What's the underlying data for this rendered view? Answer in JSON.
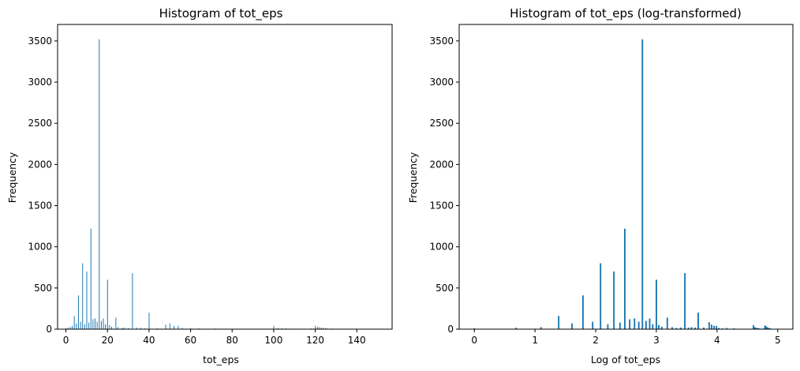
{
  "figure": {
    "background": "#ffffff",
    "bar_color": "#1f77b4"
  },
  "chart_data": [
    {
      "type": "bar",
      "title": "Histogram of tot_eps",
      "xlabel": "tot_eps",
      "ylabel": "Frequency",
      "xlim": [
        -4,
        157
      ],
      "ylim": [
        0,
        3700
      ],
      "xticks": [
        0,
        20,
        40,
        60,
        80,
        100,
        120,
        140
      ],
      "yticks": [
        0,
        500,
        1000,
        1500,
        2000,
        2500,
        3000,
        3500
      ],
      "grid": false,
      "bin_width": 0.3,
      "x": [
        0,
        1,
        2,
        3,
        4,
        5,
        6,
        7,
        8,
        9,
        10,
        11,
        12,
        13,
        14,
        15,
        16,
        17,
        18,
        19,
        20,
        21,
        22,
        24,
        25,
        27,
        28,
        30,
        32,
        34,
        36,
        38,
        40,
        44,
        48,
        50,
        52,
        54,
        56,
        60,
        64,
        72,
        100,
        102,
        104,
        106,
        108,
        110,
        118,
        120,
        121,
        122,
        123,
        124,
        125,
        126,
        128,
        130
      ],
      "values": [
        10,
        18,
        25,
        40,
        160,
        70,
        410,
        90,
        800,
        60,
        700,
        80,
        1220,
        120,
        130,
        90,
        3520,
        100,
        130,
        60,
        600,
        50,
        30,
        140,
        25,
        15,
        20,
        15,
        680,
        20,
        15,
        10,
        200,
        10,
        55,
        70,
        40,
        40,
        15,
        10,
        10,
        8,
        40,
        15,
        10,
        10,
        8,
        5,
        8,
        40,
        30,
        25,
        20,
        15,
        15,
        8,
        8,
        5
      ]
    },
    {
      "type": "bar",
      "title": "Histogram of tot_eps (log-transformed)",
      "xlabel": "Log of tot_eps",
      "ylabel": "Frequency",
      "xlim": [
        -0.25,
        5.25
      ],
      "ylim": [
        0,
        3700
      ],
      "xticks": [
        0,
        1,
        2,
        3,
        4,
        5
      ],
      "yticks": [
        0,
        500,
        1000,
        1500,
        2000,
        2500,
        3000,
        3500
      ],
      "grid": false,
      "bin_width": 0.025,
      "x": [
        0.0,
        0.69,
        1.1,
        1.39,
        1.61,
        1.79,
        1.95,
        2.08,
        2.2,
        2.3,
        2.4,
        2.48,
        2.56,
        2.64,
        2.71,
        2.77,
        2.83,
        2.89,
        2.94,
        3.0,
        3.04,
        3.09,
        3.18,
        3.26,
        3.33,
        3.4,
        3.47,
        3.53,
        3.58,
        3.64,
        3.69,
        3.78,
        3.87,
        3.91,
        3.95,
        3.99,
        4.03,
        4.09,
        4.16,
        4.28,
        4.6,
        4.62,
        4.64,
        4.66,
        4.68,
        4.7,
        4.77,
        4.79,
        4.8,
        4.81,
        4.82,
        4.83,
        4.84,
        4.85,
        4.87,
        4.88
      ],
      "values": [
        10,
        18,
        25,
        160,
        70,
        410,
        90,
        800,
        60,
        700,
        80,
        1220,
        120,
        130,
        90,
        3520,
        100,
        130,
        60,
        600,
        50,
        30,
        140,
        25,
        15,
        20,
        680,
        20,
        25,
        20,
        200,
        20,
        85,
        55,
        40,
        40,
        15,
        10,
        15,
        10,
        50,
        25,
        15,
        15,
        10,
        8,
        8,
        45,
        35,
        30,
        25,
        20,
        15,
        15,
        10,
        8
      ]
    }
  ]
}
